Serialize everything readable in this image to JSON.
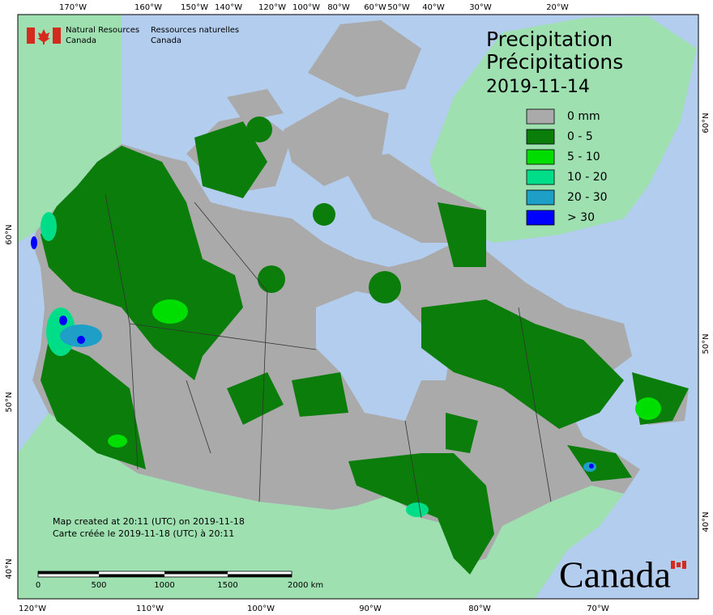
{
  "header": {
    "agency_en": [
      "Natural Resources",
      "Canada"
    ],
    "agency_fr": [
      "Ressources naturelles",
      "Canada"
    ]
  },
  "title": {
    "lines": [
      "Precipitation",
      "Précipitations"
    ],
    "date": "2019-11-14"
  },
  "legend": {
    "items": [
      {
        "label": "0 mm",
        "color": "#aaaaaa"
      },
      {
        "label": "0 - 5",
        "color": "#0a7d0a"
      },
      {
        "label": "5 - 10",
        "color": "#00dd00"
      },
      {
        "label": "10 - 20",
        "color": "#00dd88"
      },
      {
        "label": "20 - 30",
        "color": "#1e9fc8"
      },
      {
        "label": "> 30",
        "color": "#0000ff"
      }
    ]
  },
  "graticule": {
    "top": [
      "170°W",
      "160°W",
      "150°W",
      "140°W",
      "120°W",
      "100°W",
      "80°W",
      "60°W",
      "50°W",
      "40°W",
      "30°W",
      "20°W"
    ],
    "bottom": [
      "120°W",
      "110°W",
      "100°W",
      "90°W",
      "80°W",
      "70°W"
    ],
    "left": [
      "60°N",
      "50°N",
      "40°N"
    ],
    "right": [
      "60°N",
      "50°N",
      "40°N"
    ]
  },
  "footer": {
    "created_en": "Map created at 20:11 (UTC) on 2019-11-18",
    "created_fr": "Carte créée le 2019-11-18 (UTC) à 20:11"
  },
  "scale_bar": {
    "labels": [
      "0",
      "500",
      "1000",
      "1500",
      "2000 km"
    ]
  },
  "wordmark": "Canada"
}
